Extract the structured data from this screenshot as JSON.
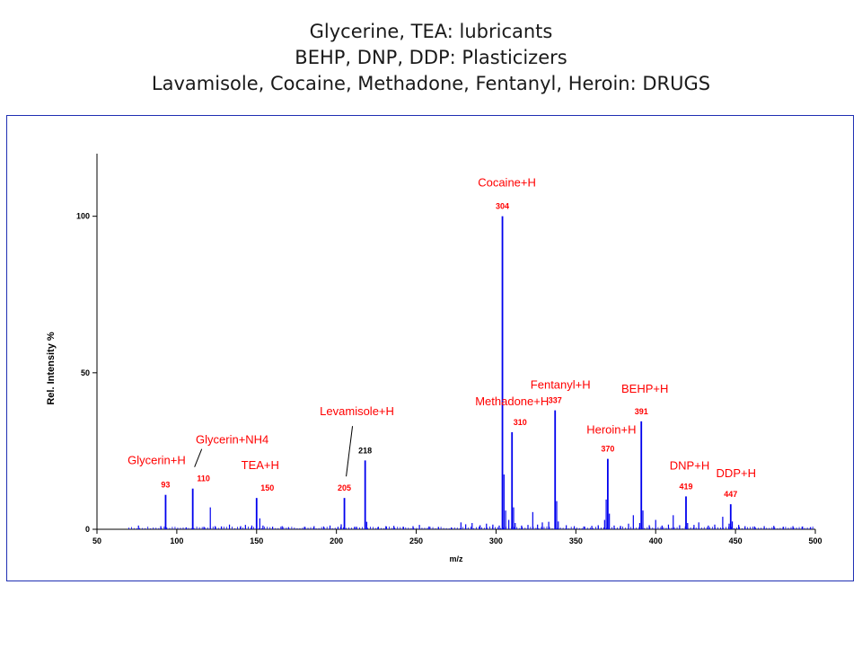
{
  "titles": [
    "Glycerine, TEA: lubricants",
    "BEHP, DNP, DDP: Plasticizers",
    "Lavamisole, Cocaine, Methadone, Fentanyl, Heroin: DRUGS"
  ],
  "colors": {
    "peaks": "#0000ee",
    "annotation": "#ff0000",
    "axis": "#000000",
    "frame": "#1f2fb3"
  },
  "chart_data": {
    "type": "bar",
    "xlabel": "m/z",
    "ylabel": "Rel. Intensity %",
    "xlim": [
      50,
      500
    ],
    "ylim": [
      0,
      120
    ],
    "xticks": [
      "50",
      "100",
      "150",
      "200",
      "250",
      "300",
      "350",
      "400",
      "450",
      "500"
    ],
    "yticks": [
      "0",
      "50",
      "100"
    ],
    "labeled_peaks": [
      {
        "mz": 93,
        "intensity": 11,
        "label": "93",
        "name": "Glycerin+H"
      },
      {
        "mz": 110,
        "intensity": 13,
        "label": "110",
        "name": "Glycerin+NH4"
      },
      {
        "mz": 150,
        "intensity": 10,
        "label": "150",
        "name": "TEA+H"
      },
      {
        "mz": 205,
        "intensity": 10,
        "label": "205",
        "name": "Levamisole+H"
      },
      {
        "mz": 218,
        "intensity": 22,
        "label": "218",
        "name": ""
      },
      {
        "mz": 304,
        "intensity": 100,
        "label": "304",
        "name": "Cocaine+H"
      },
      {
        "mz": 310,
        "intensity": 31,
        "label": "310",
        "name": "Methadone+H"
      },
      {
        "mz": 337,
        "intensity": 38,
        "label": "337",
        "name": "Fentanyl+H"
      },
      {
        "mz": 370,
        "intensity": 22.5,
        "label": "370",
        "name": "Heroin+H"
      },
      {
        "mz": 391,
        "intensity": 34.5,
        "label": "391",
        "name": "BEHP+H"
      },
      {
        "mz": 419,
        "intensity": 10.5,
        "label": "419",
        "name": "DNP+H"
      },
      {
        "mz": 447,
        "intensity": 8,
        "label": "447",
        "name": "DDP+H"
      }
    ],
    "minor_peaks": [
      [
        76,
        1.2
      ],
      [
        90,
        1
      ],
      [
        106,
        0.6
      ],
      [
        117,
        0.8
      ],
      [
        121,
        7
      ],
      [
        124,
        1
      ],
      [
        128,
        0.9
      ],
      [
        133,
        1.5
      ],
      [
        140,
        1
      ],
      [
        143,
        1.4
      ],
      [
        147,
        1.2
      ],
      [
        152,
        3.5
      ],
      [
        154,
        1.2
      ],
      [
        160,
        0.8
      ],
      [
        166,
        1
      ],
      [
        170,
        0.7
      ],
      [
        180,
        0.8
      ],
      [
        186,
        1
      ],
      [
        192,
        0.9
      ],
      [
        196,
        1.2
      ],
      [
        201,
        0.8
      ],
      [
        203,
        1.6
      ],
      [
        212,
        0.8
      ],
      [
        219,
        2.4
      ],
      [
        226,
        0.7
      ],
      [
        231,
        1
      ],
      [
        236,
        1.1
      ],
      [
        242,
        0.8
      ],
      [
        248,
        1
      ],
      [
        252,
        1.4
      ],
      [
        258,
        0.9
      ],
      [
        264,
        0.7
      ],
      [
        272,
        0.6
      ],
      [
        278,
        2.2
      ],
      [
        281,
        1.6
      ],
      [
        285,
        2
      ],
      [
        290,
        1.3
      ],
      [
        294,
        1.8
      ],
      [
        298,
        1.5
      ],
      [
        302,
        1.2
      ],
      [
        305,
        17.5
      ],
      [
        306,
        6
      ],
      [
        308,
        3
      ],
      [
        311,
        7
      ],
      [
        312,
        2
      ],
      [
        316,
        1.2
      ],
      [
        320,
        1.4
      ],
      [
        323,
        5.5
      ],
      [
        326,
        1.5
      ],
      [
        329,
        2.2
      ],
      [
        333,
        2.4
      ],
      [
        338,
        9
      ],
      [
        339,
        2.5
      ],
      [
        344,
        1.3
      ],
      [
        349,
        1
      ],
      [
        355,
        0.9
      ],
      [
        360,
        1.1
      ],
      [
        364,
        1.3
      ],
      [
        368,
        3
      ],
      [
        369,
        9.5
      ],
      [
        371,
        5
      ],
      [
        374,
        1.2
      ],
      [
        378,
        1.1
      ],
      [
        383,
        1.8
      ],
      [
        386,
        4.5
      ],
      [
        390,
        2
      ],
      [
        392,
        6
      ],
      [
        396,
        1.3
      ],
      [
        400,
        3
      ],
      [
        404,
        1.2
      ],
      [
        408,
        1.5
      ],
      [
        411,
        4.5
      ],
      [
        415,
        1.3
      ],
      [
        420,
        2
      ],
      [
        424,
        1.4
      ],
      [
        427,
        2.2
      ],
      [
        433,
        1.2
      ],
      [
        437,
        1.5
      ],
      [
        442,
        4
      ],
      [
        446,
        1.8
      ],
      [
        448,
        2.5
      ],
      [
        452,
        1.4
      ],
      [
        456,
        1
      ],
      [
        462,
        0.9
      ],
      [
        468,
        1
      ],
      [
        474,
        1.1
      ],
      [
        480,
        0.8
      ],
      [
        486,
        1
      ],
      [
        492,
        0.9
      ],
      [
        497,
        0.7
      ]
    ]
  }
}
